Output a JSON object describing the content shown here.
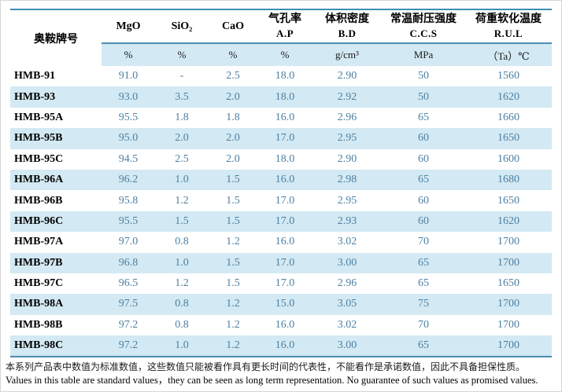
{
  "table": {
    "brand_header": "奥鞍牌号",
    "columns": [
      {
        "name": "MgO",
        "sub": "",
        "unit": "%"
      },
      {
        "name": "SiO₂",
        "sub": "",
        "unit": "%"
      },
      {
        "name": "CaO",
        "sub": "",
        "unit": "%"
      },
      {
        "name": "气孔率",
        "sub": "A.P",
        "unit": "%"
      },
      {
        "name": "体积密度",
        "sub": "B.D",
        "unit": "g/cm³"
      },
      {
        "name": "常温耐压强度",
        "sub": "C.C.S",
        "unit": "MPa"
      },
      {
        "name": "荷重软化温度",
        "sub": "R.U.L",
        "unit": "（Ta）℃"
      }
    ],
    "rows": [
      {
        "brand": "HMB-91",
        "values": [
          "91.0",
          "-",
          "2.5",
          "18.0",
          "2.90",
          "50",
          "1560"
        ]
      },
      {
        "brand": "HMB-93",
        "values": [
          "93.0",
          "3.5",
          "2.0",
          "18.0",
          "2.92",
          "50",
          "1620"
        ]
      },
      {
        "brand": "HMB-95A",
        "values": [
          "95.5",
          "1.8",
          "1.8",
          "16.0",
          "2.96",
          "65",
          "1660"
        ]
      },
      {
        "brand": "HMB-95B",
        "values": [
          "95.0",
          "2.0",
          "2.0",
          "17.0",
          "2.95",
          "60",
          "1650"
        ]
      },
      {
        "brand": "HMB-95C",
        "values": [
          "94.5",
          "2.5",
          "2.0",
          "18.0",
          "2.90",
          "60",
          "1600"
        ]
      },
      {
        "brand": "HMB-96A",
        "values": [
          "96.2",
          "1.0",
          "1.5",
          "16.0",
          "2.98",
          "65",
          "1680"
        ]
      },
      {
        "brand": "HMB-96B",
        "values": [
          "95.8",
          "1.2",
          "1.5",
          "17.0",
          "2.95",
          "60",
          "1650"
        ]
      },
      {
        "brand": "HMB-96C",
        "values": [
          "95.5",
          "1.5",
          "1.5",
          "17.0",
          "2.93",
          "60",
          "1620"
        ]
      },
      {
        "brand": "HMB-97A",
        "values": [
          "97.0",
          "0.8",
          "1.2",
          "16.0",
          "3.02",
          "70",
          "1700"
        ]
      },
      {
        "brand": "HMB-97B",
        "values": [
          "96.8",
          "1.0",
          "1.5",
          "17.0",
          "3.00",
          "65",
          "1700"
        ]
      },
      {
        "brand": "HMB-97C",
        "values": [
          "96.5",
          "1.2",
          "1.5",
          "17.0",
          "2.96",
          "65",
          "1650"
        ]
      },
      {
        "brand": "HMB-98A",
        "values": [
          "97.5",
          "0.8",
          "1.2",
          "15.0",
          "3.05",
          "75",
          "1700"
        ]
      },
      {
        "brand": "HMB-98B",
        "values": [
          "97.2",
          "0.8",
          "1.2",
          "16.0",
          "3.02",
          "70",
          "1700"
        ]
      },
      {
        "brand": "HMB-98C",
        "values": [
          "97.2",
          "1.0",
          "1.2",
          "16.0",
          "3.00",
          "65",
          "1700"
        ]
      }
    ]
  },
  "footer": {
    "zh": "本系列产品表中数值为标准数值，这些数值只能被看作具有更长时间的代表性，不能看作是承诺数值，因此不具备担保性质。",
    "en": "Values in this table are standard values，they can be seen as long term representation. No guarantee of such values as promised values."
  },
  "colors": {
    "band_blue": "#d3e9f3",
    "rule_teal": "#3f8fb0",
    "rule_blue": "#4a8cb3",
    "value_text": "#4d80a2"
  }
}
